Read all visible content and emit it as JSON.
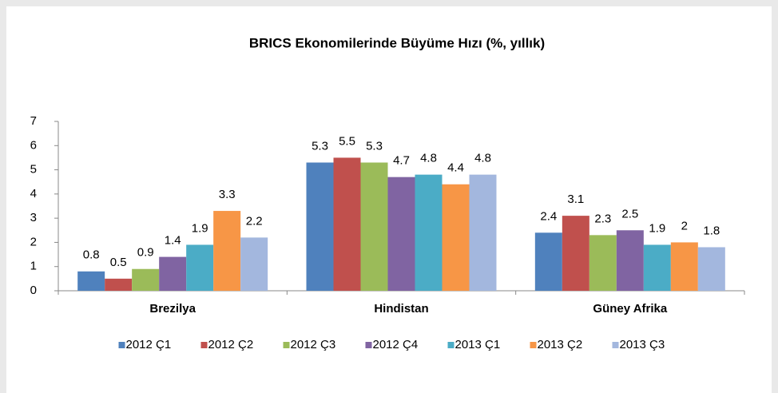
{
  "chart_data": {
    "type": "bar",
    "title": "BRICS Ekonomilerinde Büyüme Hızı (%, yıllık)",
    "categories": [
      "Brezilya",
      "Hindistan",
      "Güney Afrika"
    ],
    "series": [
      {
        "name": "2012 Ç1",
        "color": "#4f81bd",
        "values": [
          0.8,
          5.3,
          2.4
        ]
      },
      {
        "name": "2012 Ç2",
        "color": "#c0504d",
        "values": [
          0.5,
          5.5,
          3.1
        ]
      },
      {
        "name": "2012 Ç3",
        "color": "#9bbb59",
        "values": [
          0.9,
          5.3,
          2.3
        ]
      },
      {
        "name": "2012 Ç4",
        "color": "#8064a2",
        "values": [
          1.4,
          4.7,
          2.5
        ]
      },
      {
        "name": "2013 Ç1",
        "color": "#4bacc6",
        "values": [
          1.9,
          4.8,
          1.9
        ]
      },
      {
        "name": "2013 Ç2",
        "color": "#f79646",
        "values": [
          3.3,
          4.4,
          2
        ]
      },
      {
        "name": "2013 Ç3",
        "color": "#a3b7de",
        "values": [
          2.2,
          4.8,
          1.8
        ]
      }
    ],
    "ylim": [
      0,
      7
    ],
    "yticks": [
      0,
      1,
      2,
      3,
      4,
      5,
      6,
      7
    ],
    "legend": "bottom"
  }
}
